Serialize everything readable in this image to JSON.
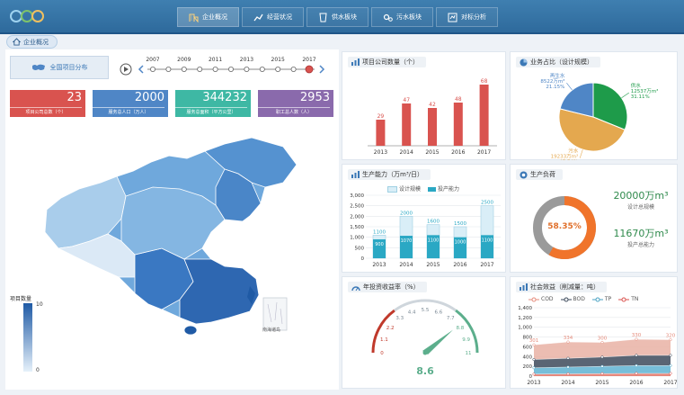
{
  "nav": {
    "items": [
      {
        "label": "企业概况",
        "icon": "building-icon"
      },
      {
        "label": "经营状况",
        "icon": "chart-icon"
      },
      {
        "label": "供水板块",
        "icon": "water-cup-icon"
      },
      {
        "label": "污水板块",
        "icon": "gears-icon"
      },
      {
        "label": "对标分析",
        "icon": "compare-icon"
      }
    ]
  },
  "breadcrumb": {
    "label": "企业概况"
  },
  "map_section": {
    "button_label": "全国项目分布",
    "timeline": {
      "years": [
        "2007",
        "2009",
        "2011",
        "2013",
        "2015",
        "2017"
      ],
      "selected": "2017"
    },
    "stats": [
      {
        "value": "23",
        "label": "项目公司总数（个）",
        "color": "#d9534f"
      },
      {
        "value": "2000",
        "label": "服务总人口（万人）",
        "color": "#4f86c6"
      },
      {
        "value": "344232",
        "label": "服务总面积（平方公里）",
        "color": "#3eb8a4"
      },
      {
        "value": "2953",
        "label": "职工总人数（人）",
        "color": "#8a6aac"
      }
    ],
    "legend": {
      "title": "项目数量",
      "max": "10",
      "min": "0"
    },
    "south_sea_label": "南海诸岛"
  },
  "company_count": {
    "title": "项目公司数量（个）",
    "chart_data": {
      "type": "bar",
      "categories": [
        "2013",
        "2014",
        "2015",
        "2016",
        "2017"
      ],
      "values": [
        29,
        47,
        42,
        48,
        68
      ],
      "ylim": [
        0,
        80
      ],
      "color": "#d9534f"
    }
  },
  "business_share": {
    "title": "业务占比（设计规模）",
    "chart_data": {
      "type": "pie",
      "slices": [
        {
          "name": "供水",
          "value": "12537万m³",
          "percent": "31.11%",
          "pct": 31.11,
          "color": "#1e9b4a"
        },
        {
          "name": "污水",
          "value": "19233万m³",
          "percent": "47.74%",
          "pct": 47.74,
          "color": "#e4a84f"
        },
        {
          "name": "再生水",
          "value": "8522万m³",
          "percent": "21.15%",
          "pct": 21.15,
          "color": "#4f86c6"
        }
      ]
    }
  },
  "capacity": {
    "title": "生产能力（万m³/日）",
    "chart_data": {
      "type": "bar",
      "categories": [
        "2013",
        "2014",
        "2015",
        "2016",
        "2017"
      ],
      "series": [
        {
          "name": "设计规模",
          "values": [
            1100,
            2000,
            1600,
            1500,
            2500
          ],
          "color": "#d9eef7"
        },
        {
          "name": "投产能力",
          "values": [
            900,
            1070,
            1100,
            1000,
            1100
          ],
          "color": "#2aa8c4"
        }
      ],
      "yticks": [
        "3,000",
        "2,500",
        "2,000",
        "1,500",
        "1,000",
        "500",
        "0"
      ],
      "ylim": [
        0,
        3000
      ]
    }
  },
  "load": {
    "title": "生产负荷",
    "percent_label": "58.35%",
    "pct": 58.35,
    "design_value": "20000万m³",
    "design_label": "设计总规模",
    "actual_value": "11670万m³",
    "actual_label": "投产总能力"
  },
  "roi": {
    "title": "年投资收益率（%）",
    "value": "8.6",
    "pct": 8.6,
    "scale": [
      "0",
      "1.1",
      "2.2",
      "3.3",
      "4.4",
      "5.5",
      "6.6",
      "7.7",
      "8.8",
      "9.9",
      "11"
    ],
    "max": 11
  },
  "social": {
    "title": "社会效益（削减量：吨）",
    "chart_data": {
      "type": "area",
      "categories": [
        "2013",
        "2014",
        "2015",
        "2016",
        "2017"
      ],
      "series": [
        {
          "name": "COD",
          "values": [
            301,
            334,
            300,
            330,
            320
          ],
          "color": "#e58c7c"
        },
        {
          "name": "BOD",
          "values": [
            170,
            180,
            190,
            210,
            210
          ],
          "color": "#3d4a5c"
        },
        {
          "name": "TP",
          "values": [
            130,
            140,
            150,
            160,
            160
          ],
          "color": "#4aa2c3"
        },
        {
          "name": "TN",
          "values": [
            40,
            45,
            50,
            55,
            55
          ],
          "color": "#d9534f"
        }
      ],
      "labels": [
        "301",
        "334",
        "300",
        "330",
        "320"
      ],
      "yticks": [
        "1,400",
        "1,200",
        "1,000",
        "800",
        "600",
        "400",
        "200",
        "0"
      ],
      "ylim": [
        0,
        1400
      ]
    }
  }
}
